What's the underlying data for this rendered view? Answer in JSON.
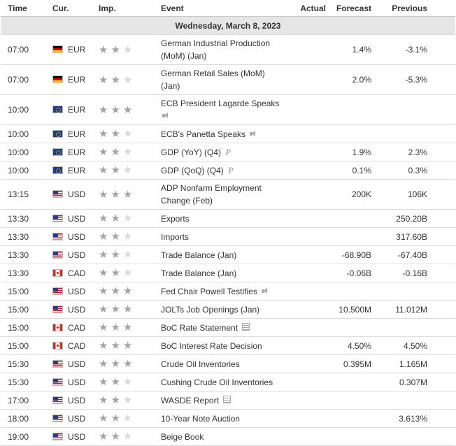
{
  "header": {
    "time": "Time",
    "currency": "Cur.",
    "importance": "Imp.",
    "event": "Event",
    "actual": "Actual",
    "forecast": "Forecast",
    "previous": "Previous"
  },
  "day_label": "Wednesday, March 8, 2023",
  "colors": {
    "star_on": "#a3a3a3",
    "star_off": "#d9d9d9",
    "day_bg": "#e6e6e6"
  },
  "rows": [
    {
      "time": "07:00",
      "flag": "de",
      "currency": "EUR",
      "stars": 2,
      "event_lines": [
        "German Industrial Production",
        "(MoM) (Jan)"
      ],
      "icon": "",
      "actual": "",
      "forecast": "1.4%",
      "previous": "-3.1%"
    },
    {
      "time": "07:00",
      "flag": "de",
      "currency": "EUR",
      "stars": 2,
      "event_lines": [
        "German Retail Sales (MoM)",
        "(Jan)"
      ],
      "icon": "",
      "actual": "",
      "forecast": "2.0%",
      "previous": "-5.3%"
    },
    {
      "time": "10:00",
      "flag": "eu",
      "currency": "EUR",
      "stars": 3,
      "event_lines": [
        "ECB President Lagarde Speaks",
        ""
      ],
      "icon": "speech-icon",
      "icon_line": 2,
      "actual": "",
      "forecast": "",
      "previous": ""
    },
    {
      "time": "10:00",
      "flag": "eu",
      "currency": "EUR",
      "stars": 2,
      "event_lines": [
        "ECB's Panetta Speaks"
      ],
      "icon": "speech-icon",
      "actual": "",
      "forecast": "",
      "previous": ""
    },
    {
      "time": "10:00",
      "flag": "eu",
      "currency": "EUR",
      "stars": 2,
      "event_lines": [
        "GDP (YoY) (Q4)"
      ],
      "icon": "preliminary-icon",
      "actual": "",
      "forecast": "1.9%",
      "previous": "2.3%"
    },
    {
      "time": "10:00",
      "flag": "eu",
      "currency": "EUR",
      "stars": 2,
      "event_lines": [
        "GDP (QoQ) (Q4)"
      ],
      "icon": "preliminary-icon",
      "actual": "",
      "forecast": "0.1%",
      "previous": "0.3%"
    },
    {
      "time": "13:15",
      "flag": "us",
      "currency": "USD",
      "stars": 3,
      "event_lines": [
        "ADP Nonfarm Employment",
        "Change (Feb)"
      ],
      "icon": "",
      "actual": "",
      "forecast": "200K",
      "previous": "106K"
    },
    {
      "time": "13:30",
      "flag": "us",
      "currency": "USD",
      "stars": 2,
      "event_lines": [
        "Exports"
      ],
      "icon": "",
      "actual": "",
      "forecast": "",
      "previous": "250.20B"
    },
    {
      "time": "13:30",
      "flag": "us",
      "currency": "USD",
      "stars": 2,
      "event_lines": [
        "Imports"
      ],
      "icon": "",
      "actual": "",
      "forecast": "",
      "previous": "317.60B"
    },
    {
      "time": "13:30",
      "flag": "us",
      "currency": "USD",
      "stars": 2,
      "event_lines": [
        "Trade Balance (Jan)"
      ],
      "icon": "",
      "actual": "",
      "forecast": "-68.90B",
      "previous": "-67.40B"
    },
    {
      "time": "13:30",
      "flag": "ca",
      "currency": "CAD",
      "stars": 2,
      "event_lines": [
        "Trade Balance (Jan)"
      ],
      "icon": "",
      "actual": "",
      "forecast": "-0.06B",
      "previous": "-0.16B"
    },
    {
      "time": "15:00",
      "flag": "us",
      "currency": "USD",
      "stars": 3,
      "event_lines": [
        "Fed Chair Powell Testifies"
      ],
      "icon": "speech-icon",
      "actual": "",
      "forecast": "",
      "previous": ""
    },
    {
      "time": "15:00",
      "flag": "us",
      "currency": "USD",
      "stars": 3,
      "event_lines": [
        "JOLTs Job Openings (Jan)"
      ],
      "icon": "",
      "actual": "",
      "forecast": "10.500M",
      "previous": "11.012M"
    },
    {
      "time": "15:00",
      "flag": "ca",
      "currency": "CAD",
      "stars": 3,
      "event_lines": [
        "BoC Rate Statement"
      ],
      "icon": "report-icon",
      "actual": "",
      "forecast": "",
      "previous": ""
    },
    {
      "time": "15:00",
      "flag": "ca",
      "currency": "CAD",
      "stars": 3,
      "event_lines": [
        "BoC Interest Rate Decision"
      ],
      "icon": "",
      "actual": "",
      "forecast": "4.50%",
      "previous": "4.50%"
    },
    {
      "time": "15:30",
      "flag": "us",
      "currency": "USD",
      "stars": 3,
      "event_lines": [
        "Crude Oil Inventories"
      ],
      "icon": "",
      "actual": "",
      "forecast": "0.395M",
      "previous": "1.165M"
    },
    {
      "time": "15:30",
      "flag": "us",
      "currency": "USD",
      "stars": 2,
      "event_lines": [
        "Cushing Crude Oil Inventories"
      ],
      "icon": "",
      "actual": "",
      "forecast": "",
      "previous": "0.307M"
    },
    {
      "time": "17:00",
      "flag": "us",
      "currency": "USD",
      "stars": 2,
      "event_lines": [
        "WASDE Report"
      ],
      "icon": "report-icon",
      "actual": "",
      "forecast": "",
      "previous": ""
    },
    {
      "time": "18:00",
      "flag": "us",
      "currency": "USD",
      "stars": 2,
      "event_lines": [
        "10-Year Note Auction"
      ],
      "icon": "",
      "actual": "",
      "forecast": "",
      "previous": "3.613%"
    },
    {
      "time": "19:00",
      "flag": "us",
      "currency": "USD",
      "stars": 2,
      "event_lines": [
        "Beige Book"
      ],
      "icon": "",
      "actual": "",
      "forecast": "",
      "previous": ""
    }
  ]
}
